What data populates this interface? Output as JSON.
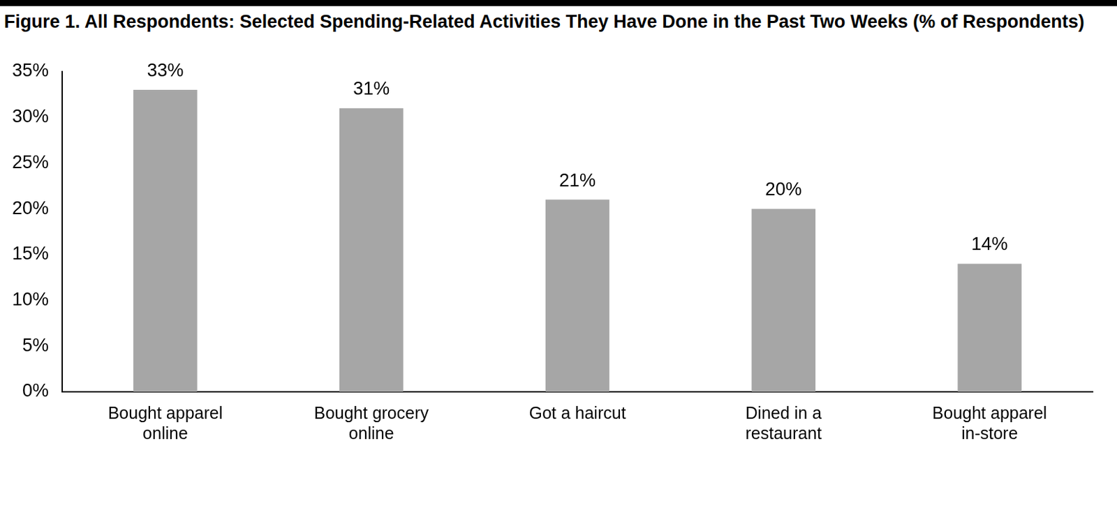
{
  "chart_data": {
    "type": "bar",
    "title": "Figure 1. All Respondents: Selected Spending-Related Activities They Have Done in the Past Two Weeks (% of Respondents)",
    "categories": [
      "Bought apparel online",
      "Bought grocery online",
      "Got a haircut",
      "Dined in a restaurant",
      "Bought apparel in-store"
    ],
    "values": [
      33,
      31,
      21,
      20,
      14
    ],
    "value_labels": [
      "33%",
      "31%",
      "21%",
      "20%",
      "14%"
    ],
    "color": "#a6a6a6",
    "ylim": [
      0,
      35
    ],
    "yticks": [
      {
        "value": 0,
        "label": "0%"
      },
      {
        "value": 5,
        "label": "5%"
      },
      {
        "value": 10,
        "label": "10%"
      },
      {
        "value": 15,
        "label": "15%"
      },
      {
        "value": 20,
        "label": "20%"
      },
      {
        "value": 25,
        "label": "25%"
      },
      {
        "value": 30,
        "label": "30%"
      },
      {
        "value": 35,
        "label": "35%"
      }
    ],
    "grid": false,
    "data_labels": true
  }
}
